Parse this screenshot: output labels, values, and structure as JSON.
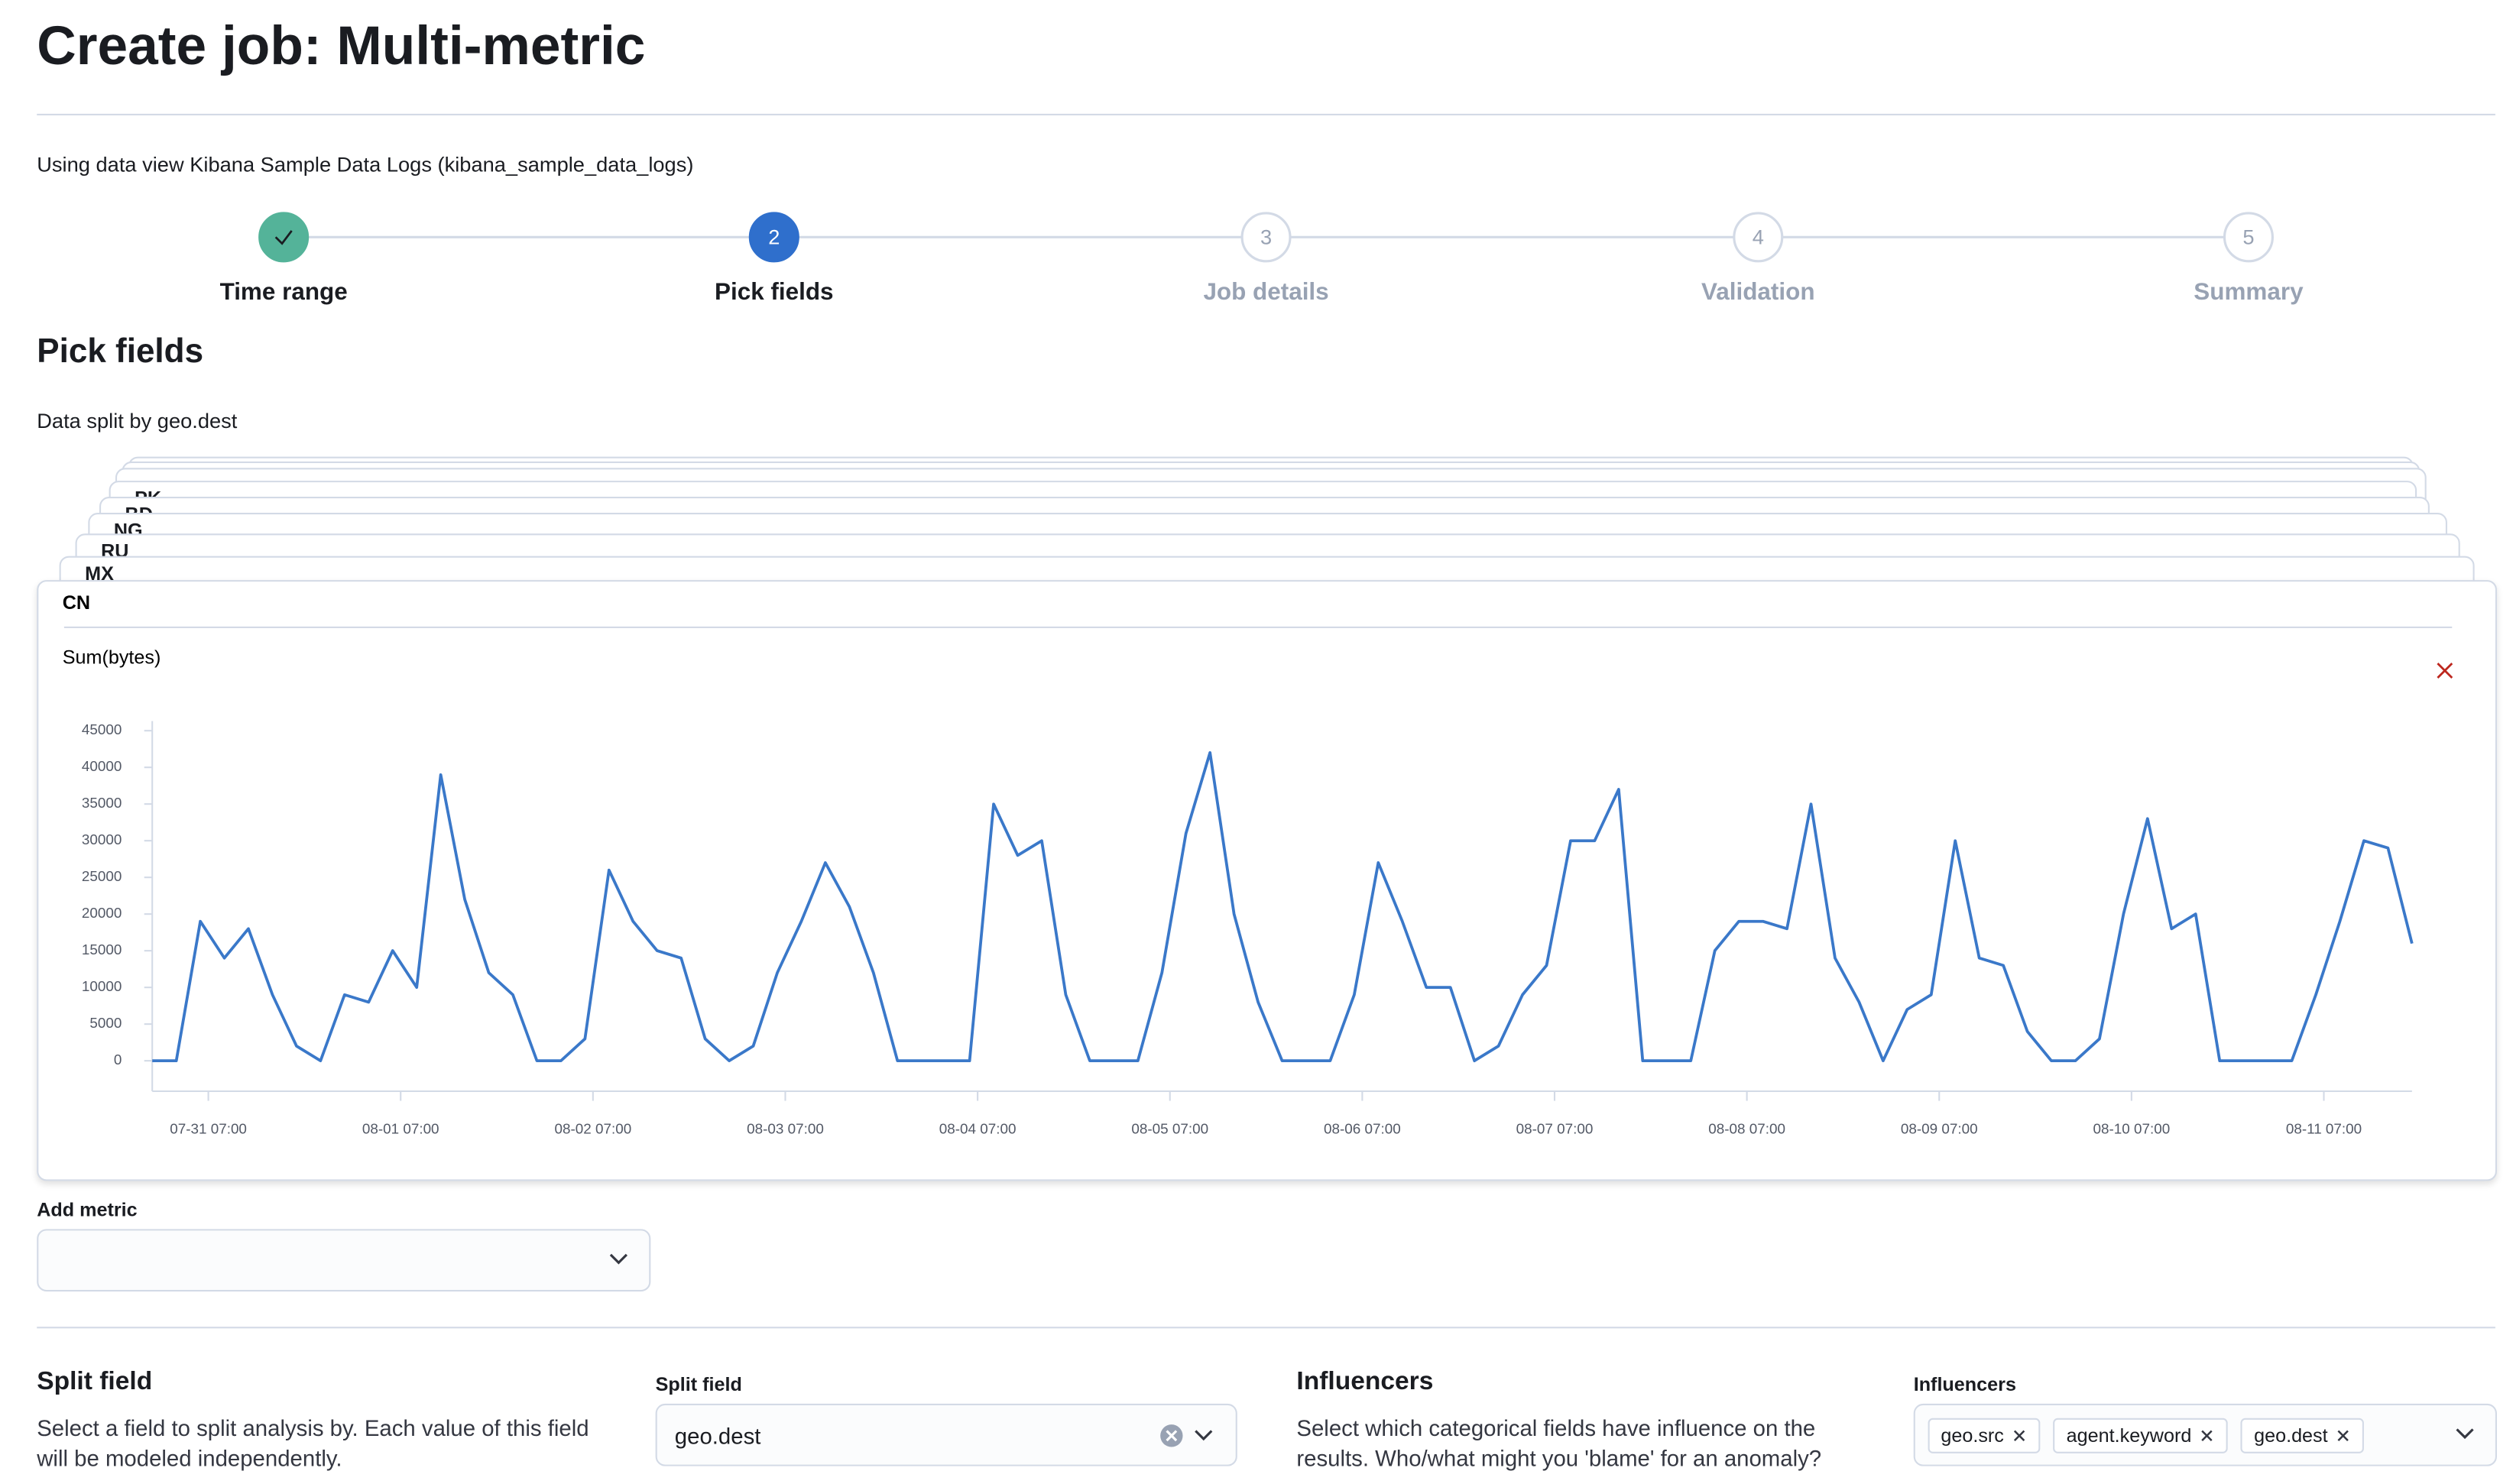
{
  "header": {
    "title": "Create job: Multi-metric",
    "data_view": "Using data view Kibana Sample Data Logs (kibana_sample_data_logs)"
  },
  "steps": [
    {
      "label": "Time range"
    },
    {
      "number": "2",
      "label": "Pick fields"
    },
    {
      "number": "3",
      "label": "Job details"
    },
    {
      "number": "4",
      "label": "Validation"
    },
    {
      "number": "5",
      "label": "Summary"
    }
  ],
  "section_title": "Pick fields",
  "split_caption": "Data split by geo.dest",
  "cards_behind": [
    "PK",
    "BD",
    "NG",
    "RU",
    "MX"
  ],
  "chart_data": {
    "type": "line",
    "title": "CN",
    "subtitle": "Sum(bytes)",
    "color": "#3a78c9",
    "x": [
      "07-31 00:00",
      "07-31 03:00",
      "07-31 06:00",
      "07-31 09:00",
      "07-31 12:00",
      "07-31 15:00",
      "07-31 18:00",
      "07-31 21:00",
      "08-01 00:00",
      "08-01 03:00",
      "08-01 06:00",
      "08-01 09:00",
      "08-01 12:00",
      "08-01 15:00",
      "08-01 18:00",
      "08-01 21:00",
      "08-02 00:00",
      "08-02 03:00",
      "08-02 06:00",
      "08-02 09:00",
      "08-02 12:00",
      "08-02 15:00",
      "08-02 18:00",
      "08-02 21:00",
      "08-03 00:00",
      "08-03 03:00",
      "08-03 06:00",
      "08-03 09:00",
      "08-03 12:00",
      "08-03 15:00",
      "08-03 18:00",
      "08-03 21:00",
      "08-04 00:00",
      "08-04 03:00",
      "08-04 06:00",
      "08-04 09:00",
      "08-04 12:00",
      "08-04 15:00",
      "08-04 18:00",
      "08-04 21:00",
      "08-05 00:00",
      "08-05 03:00",
      "08-05 06:00",
      "08-05 09:00",
      "08-05 12:00",
      "08-05 15:00",
      "08-05 18:00",
      "08-05 21:00",
      "08-06 00:00",
      "08-06 03:00",
      "08-06 06:00",
      "08-06 09:00",
      "08-06 12:00",
      "08-06 15:00",
      "08-06 18:00",
      "08-06 21:00",
      "08-07 00:00",
      "08-07 03:00",
      "08-07 06:00",
      "08-07 09:00",
      "08-07 12:00",
      "08-07 15:00",
      "08-07 18:00",
      "08-07 21:00",
      "08-08 00:00",
      "08-08 03:00",
      "08-08 06:00",
      "08-08 09:00",
      "08-08 12:00",
      "08-08 15:00",
      "08-08 18:00",
      "08-08 21:00",
      "08-09 00:00",
      "08-09 03:00",
      "08-09 06:00",
      "08-09 09:00",
      "08-09 12:00",
      "08-09 15:00",
      "08-09 18:00",
      "08-09 21:00",
      "08-10 00:00",
      "08-10 03:00",
      "08-10 06:00",
      "08-10 09:00",
      "08-10 12:00",
      "08-10 15:00",
      "08-10 18:00",
      "08-10 21:00",
      "08-11 00:00",
      "08-11 03:00",
      "08-11 06:00",
      "08-11 09:00",
      "08-11 12:00",
      "08-11 15:00",
      "08-11 18:00"
    ],
    "values": [
      0,
      0,
      19000,
      14000,
      18000,
      9000,
      2000,
      0,
      9000,
      8000,
      15000,
      10000,
      39000,
      22000,
      12000,
      9000,
      0,
      0,
      3000,
      26000,
      19000,
      15000,
      14000,
      3000,
      0,
      2000,
      12000,
      19000,
      27000,
      21000,
      12000,
      0,
      0,
      0,
      0,
      35000,
      28000,
      30000,
      9000,
      0,
      0,
      0,
      12000,
      31000,
      42000,
      20000,
      8000,
      0,
      0,
      0,
      9000,
      27000,
      19000,
      10000,
      10000,
      0,
      2000,
      9000,
      13000,
      30000,
      30000,
      37000,
      0,
      0,
      0,
      15000,
      19000,
      19000,
      18000,
      35000,
      14000,
      8000,
      0,
      7000,
      9000,
      30000,
      14000,
      13000,
      4000,
      0,
      0,
      3000,
      20000,
      33000,
      18000,
      20000,
      0,
      0,
      0,
      0,
      9000,
      19000,
      30000,
      29000,
      16000
    ],
    "xlim": [
      "07-31 00:00",
      "08-11 18:00"
    ],
    "xticks": [
      "07-31 07:00",
      "08-01 07:00",
      "08-02 07:00",
      "08-03 07:00",
      "08-04 07:00",
      "08-05 07:00",
      "08-06 07:00",
      "08-07 07:00",
      "08-08 07:00",
      "08-09 07:00",
      "08-10 07:00",
      "08-11 07:00"
    ],
    "ylim": [
      0,
      45000
    ],
    "yticks": [
      0,
      5000,
      10000,
      15000,
      20000,
      25000,
      30000,
      35000,
      40000,
      45000
    ]
  },
  "add_metric": {
    "label": "Add metric"
  },
  "split": {
    "heading": "Split field",
    "description": "Select a field to split analysis by. Each value of this field will be modeled independently.",
    "field_label": "Split field",
    "value": "geo.dest"
  },
  "influencers": {
    "heading": "Influencers",
    "description": "Select which categorical fields have influence on the results. Who/what might you 'blame' for an anomaly?",
    "field_label": "Influencers",
    "chips": [
      "geo.src",
      "agent.keyword",
      "geo.dest"
    ]
  }
}
